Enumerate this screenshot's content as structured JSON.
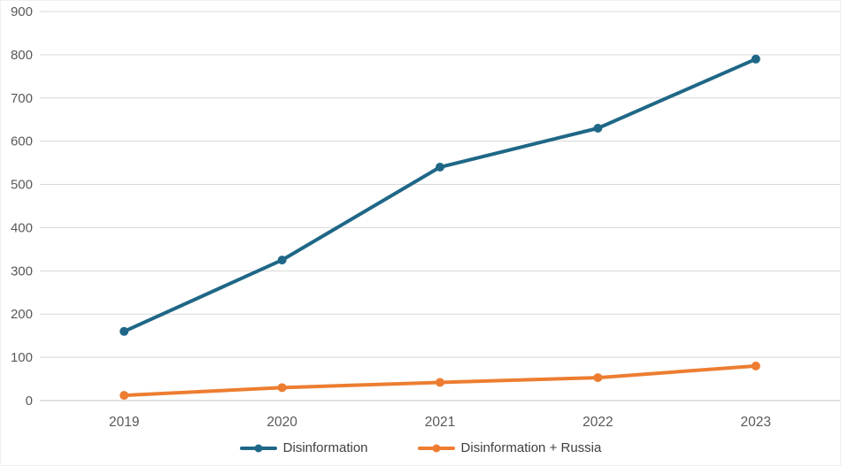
{
  "chart_data": {
    "type": "line",
    "categories": [
      "2019",
      "2020",
      "2021",
      "2022",
      "2023"
    ],
    "series": [
      {
        "name": "Disinformation",
        "color": "#1f6787",
        "values": [
          160,
          325,
          540,
          630,
          790
        ]
      },
      {
        "name": "Disinformation + Russia",
        "color": "#ed7d31",
        "values": [
          12,
          30,
          42,
          53,
          80
        ]
      }
    ],
    "title": "",
    "xlabel": "",
    "ylabel": "",
    "ylim": [
      0,
      900
    ],
    "ytick_step": 100,
    "grid": true,
    "legend_position": "bottom",
    "axis_text_color": "#595959",
    "grid_color": "#d9d9d9",
    "axis_line_color": "#c6c6c6"
  }
}
